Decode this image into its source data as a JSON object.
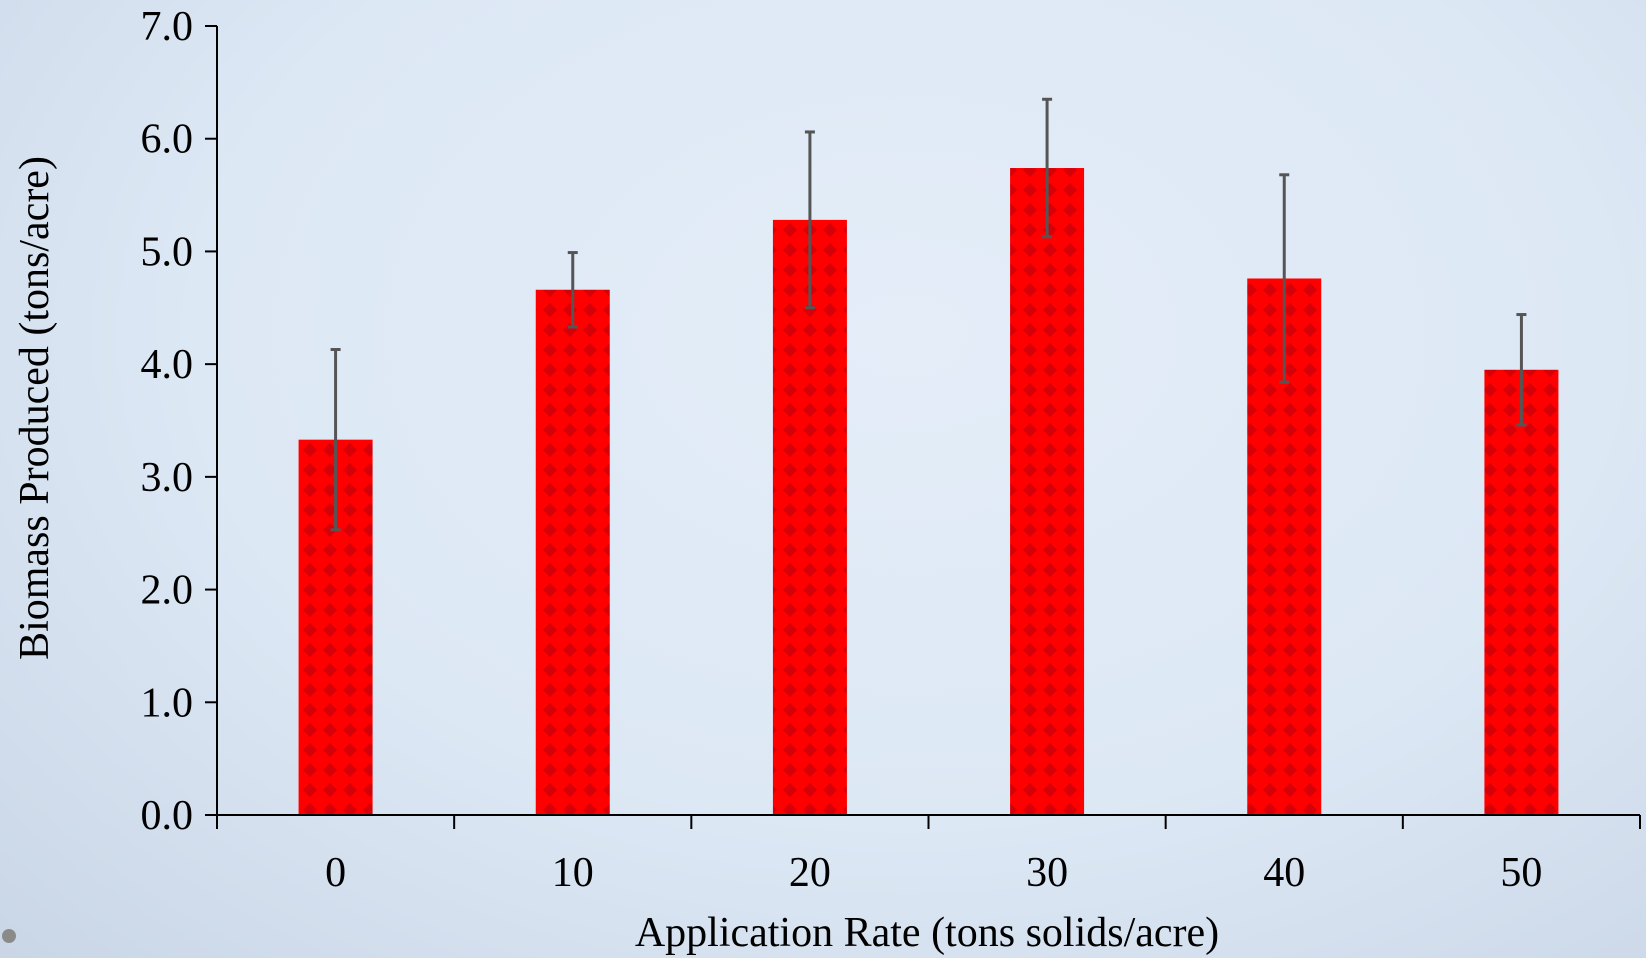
{
  "chart_data": {
    "type": "bar",
    "categories": [
      "0",
      "10",
      "20",
      "30",
      "40",
      "50"
    ],
    "values": [
      3.33,
      4.66,
      5.28,
      5.74,
      4.76,
      3.95
    ],
    "error_bars": [
      0.8,
      0.33,
      0.78,
      0.61,
      0.92,
      0.49
    ],
    "title": "",
    "xlabel": "Application Rate (tons solids/acre)",
    "ylabel": "Biomass Produced (tons/acre)",
    "ylim": [
      0,
      7
    ],
    "y_ticks": [
      "0.0",
      "1.0",
      "2.0",
      "3.0",
      "4.0",
      "5.0",
      "6.0",
      "7.0"
    ],
    "grid": false,
    "legend": "none",
    "bar_color": "#ff0000",
    "bar_pattern_color": "#c8000a",
    "error_bar_color": "#555555"
  }
}
